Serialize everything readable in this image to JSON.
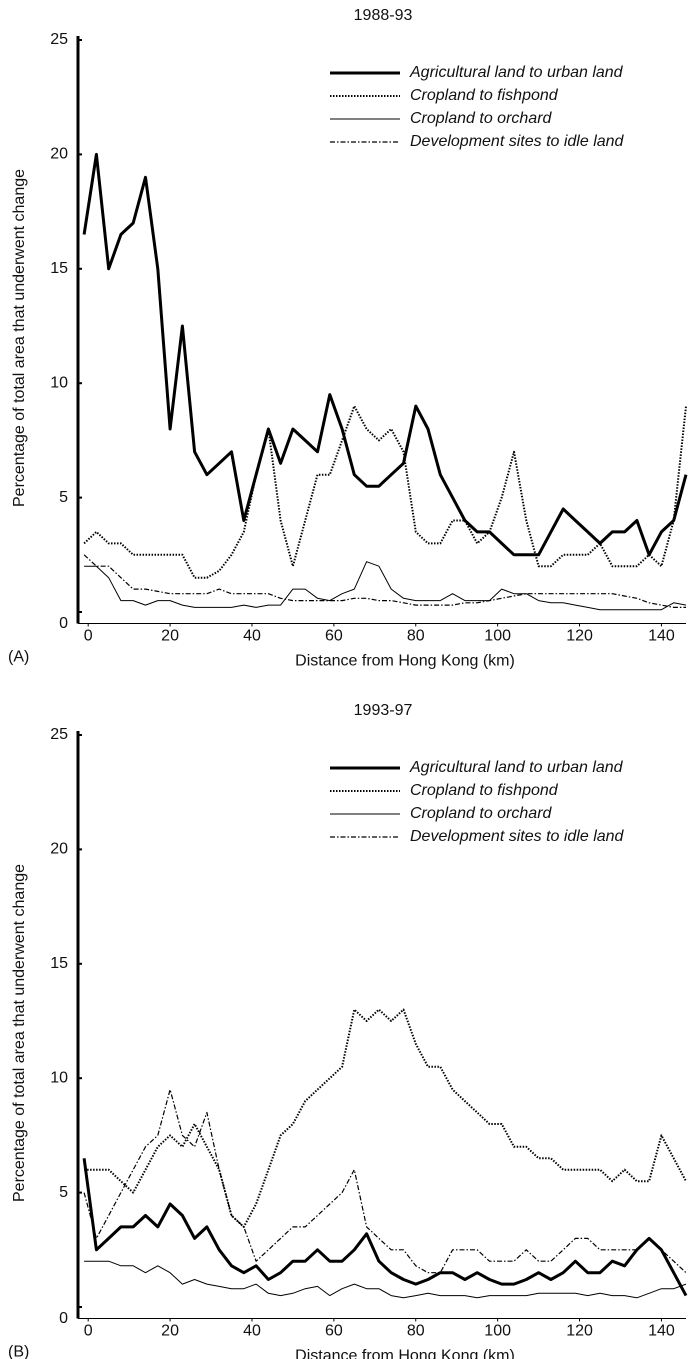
{
  "chart_data": [
    {
      "type": "line",
      "title": "1988-93",
      "panel_label": "(A)",
      "xlabel": "Distance from Hong Kong (km)",
      "ylabel": "Percentage of total area that underwent change",
      "xlim": [
        -2,
        146
      ],
      "ylim": [
        -0.5,
        25
      ],
      "xticks": [
        0,
        20,
        40,
        60,
        80,
        100,
        120,
        140
      ],
      "yticks": [
        0,
        5,
        10,
        15,
        20,
        25
      ],
      "legend": "upper right",
      "x": [
        -1,
        2,
        5,
        8,
        11,
        14,
        17,
        20,
        23,
        26,
        29,
        32,
        35,
        38,
        41,
        44,
        47,
        50,
        53,
        56,
        59,
        62,
        65,
        68,
        71,
        74,
        77,
        80,
        83,
        86,
        89,
        92,
        95,
        98,
        101,
        104,
        107,
        110,
        113,
        116,
        119,
        122,
        125,
        128,
        131,
        134,
        137,
        140,
        143,
        146
      ],
      "series": [
        {
          "name": "Agricultural land to urban land",
          "color": "#000000",
          "style": "bold",
          "values": [
            16.5,
            20,
            15,
            16.5,
            17,
            19,
            15,
            8,
            12.5,
            7,
            6,
            6.5,
            7,
            4,
            6,
            8,
            6.5,
            8,
            7.5,
            7,
            9.5,
            8,
            6,
            5.5,
            5.5,
            6,
            6.5,
            9,
            8,
            6,
            5,
            4,
            3.5,
            3.5,
            3,
            2.5,
            2.5,
            2.5,
            3.5,
            4.5,
            4,
            3.5,
            3,
            3.5,
            3.5,
            4,
            2.5,
            3.5,
            4,
            6
          ]
        },
        {
          "name": "Cropland to fishpond",
          "color": "#000000",
          "style": "dotted",
          "values": [
            3,
            3.5,
            3,
            3,
            2.5,
            2.5,
            2.5,
            2.5,
            2.5,
            1.5,
            1.5,
            1.8,
            2.5,
            3.5,
            6,
            8,
            4,
            2,
            4,
            6,
            6,
            7.5,
            9,
            8,
            7.5,
            8,
            7,
            3.5,
            3,
            3,
            4,
            4,
            3,
            3.5,
            5,
            7,
            4,
            2,
            2,
            2.5,
            2.5,
            2.5,
            3,
            2,
            2,
            2,
            2.5,
            2,
            4,
            9
          ]
        },
        {
          "name": "Cropland to orchard",
          "color": "#000000",
          "style": "thin",
          "values": [
            2,
            2,
            1.5,
            0.5,
            0.5,
            0.3,
            0.5,
            0.5,
            0.3,
            0.2,
            0.2,
            0.2,
            0.2,
            0.3,
            0.2,
            0.3,
            0.3,
            1,
            1,
            0.6,
            0.5,
            0.8,
            1,
            2.2,
            2,
            1,
            0.6,
            0.5,
            0.5,
            0.5,
            0.8,
            0.5,
            0.5,
            0.5,
            1,
            0.8,
            0.8,
            0.5,
            0.4,
            0.4,
            0.3,
            0.2,
            0.1,
            0.1,
            0.1,
            0.1,
            0.1,
            0.1,
            0.4,
            0.3
          ]
        },
        {
          "name": "Development sites to idle land",
          "color": "#000000",
          "style": "dash-dot",
          "values": [
            2.5,
            2,
            2,
            1.5,
            1,
            1,
            0.9,
            0.8,
            0.8,
            0.8,
            0.8,
            1,
            0.8,
            0.8,
            0.8,
            0.8,
            0.6,
            0.5,
            0.5,
            0.5,
            0.5,
            0.5,
            0.6,
            0.6,
            0.5,
            0.5,
            0.4,
            0.3,
            0.3,
            0.3,
            0.3,
            0.4,
            0.4,
            0.5,
            0.6,
            0.7,
            0.8,
            0.8,
            0.8,
            0.8,
            0.8,
            0.8,
            0.8,
            0.8,
            0.7,
            0.6,
            0.4,
            0.3,
            0.2,
            0.2
          ]
        }
      ]
    },
    {
      "type": "line",
      "title": "1993-97",
      "panel_label": "(B)",
      "xlabel": "Distance from Hong Kong (km)",
      "ylabel": "Percentage of total area that underwent change",
      "xlim": [
        -2,
        146
      ],
      "ylim": [
        -0.5,
        25
      ],
      "xticks": [
        0,
        20,
        40,
        60,
        80,
        100,
        120,
        140
      ],
      "yticks": [
        0,
        5,
        10,
        15,
        20,
        25
      ],
      "legend": "upper right",
      "x": [
        -1,
        2,
        5,
        8,
        11,
        14,
        17,
        20,
        23,
        26,
        29,
        32,
        35,
        38,
        41,
        44,
        47,
        50,
        53,
        56,
        59,
        62,
        65,
        68,
        71,
        74,
        77,
        80,
        83,
        86,
        89,
        92,
        95,
        98,
        101,
        104,
        107,
        110,
        113,
        116,
        119,
        122,
        125,
        128,
        131,
        134,
        137,
        140,
        143,
        146
      ],
      "series": [
        {
          "name": "Agricultural land to urban land",
          "color": "#000000",
          "style": "bold",
          "values": [
            6.5,
            2.5,
            3,
            3.5,
            3.5,
            4,
            3.5,
            4.5,
            4,
            3,
            3.5,
            2.5,
            1.8,
            1.5,
            1.8,
            1.2,
            1.5,
            2,
            2,
            2.5,
            2,
            2,
            2.5,
            3.2,
            2,
            1.5,
            1.2,
            1,
            1.2,
            1.5,
            1.5,
            1.2,
            1.5,
            1.2,
            1,
            1,
            1.2,
            1.5,
            1.2,
            1.5,
            2,
            1.5,
            1.5,
            2,
            1.8,
            2.5,
            3,
            2.5,
            1.5,
            0.5
          ]
        },
        {
          "name": "Cropland to fishpond",
          "color": "#000000",
          "style": "dotted",
          "values": [
            6,
            6,
            6,
            5.5,
            5,
            6,
            7,
            7.5,
            7,
            8,
            7,
            6,
            4,
            3.5,
            4.5,
            6,
            7.5,
            8,
            9,
            9.5,
            10,
            10.5,
            13,
            12.5,
            13,
            12.5,
            13,
            11.5,
            10.5,
            10.5,
            9.5,
            9,
            8.5,
            8,
            8,
            7,
            7,
            6.5,
            6.5,
            6,
            6,
            6,
            6,
            5.5,
            6,
            5.5,
            5.5,
            7.5,
            6.5,
            5.5
          ]
        },
        {
          "name": "Cropland to orchard",
          "color": "#000000",
          "style": "thin",
          "values": [
            2,
            2,
            2,
            1.8,
            1.8,
            1.5,
            1.8,
            1.5,
            1,
            1.2,
            1,
            0.9,
            0.8,
            0.8,
            1,
            0.6,
            0.5,
            0.6,
            0.8,
            0.9,
            0.5,
            0.8,
            1,
            0.8,
            0.8,
            0.5,
            0.4,
            0.5,
            0.6,
            0.5,
            0.5,
            0.5,
            0.4,
            0.5,
            0.5,
            0.5,
            0.5,
            0.6,
            0.6,
            0.6,
            0.6,
            0.5,
            0.6,
            0.5,
            0.5,
            0.4,
            0.6,
            0.8,
            0.8,
            1
          ]
        },
        {
          "name": "Development sites to idle land",
          "color": "#000000",
          "style": "dash-dot",
          "values": [
            5,
            3,
            4,
            5,
            6,
            7,
            7.5,
            9.5,
            7.5,
            7,
            8.5,
            6,
            4,
            3.5,
            2,
            2.5,
            3,
            3.5,
            3.5,
            4,
            4.5,
            5,
            6,
            3.5,
            3,
            2.5,
            2.5,
            1.8,
            1.5,
            1.5,
            2.5,
            2.5,
            2.5,
            2,
            2,
            2,
            2.5,
            2,
            2,
            2.5,
            3,
            3,
            2.5,
            2.5,
            2.5,
            2.5,
            3,
            2.5,
            2,
            1.5
          ]
        }
      ]
    }
  ]
}
